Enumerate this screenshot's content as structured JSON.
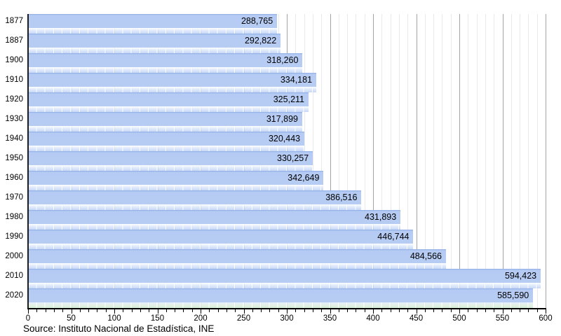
{
  "chart_data": {
    "type": "bar",
    "orientation": "horizontal",
    "title": "",
    "xlabel": "",
    "ylabel": "",
    "categories": [
      "1877",
      "1887",
      "1900",
      "1910",
      "1920",
      "1930",
      "1940",
      "1950",
      "1960",
      "1970",
      "1980",
      "1990",
      "2000",
      "2010",
      "2020"
    ],
    "values": [
      288765,
      292822,
      318260,
      334181,
      325211,
      317899,
      320443,
      330257,
      342649,
      386516,
      431893,
      446744,
      484566,
      594423,
      585590
    ],
    "value_labels": [
      "288,765",
      "292,822",
      "318,260",
      "334,181",
      "325,211",
      "317,899",
      "320,443",
      "330,257",
      "342,649",
      "386,516",
      "431,893",
      "446,744",
      "484,566",
      "594,423",
      "585,590"
    ],
    "xlim": [
      0,
      600
    ],
    "x_axis_unit": "thousands",
    "x_major_ticks": [
      0,
      50,
      100,
      150,
      200,
      250,
      300,
      350,
      400,
      450,
      500,
      550,
      600
    ],
    "x_minor_tick_step": 10,
    "grid": "vertical, minor every 10 and major every 50",
    "legend": "none",
    "source": "Source: Instituto Nacional de Estadística, INE",
    "colors": {
      "bar": "#b5cbf3",
      "bar_top_edge": "#8fade4",
      "minor_gridline": "#eaeaea",
      "major_gridline": "#a4a4a4",
      "axis": "#000000",
      "text": "#000000",
      "background": "#ffffff",
      "last_strip_tint": "#cbe8cf"
    }
  }
}
